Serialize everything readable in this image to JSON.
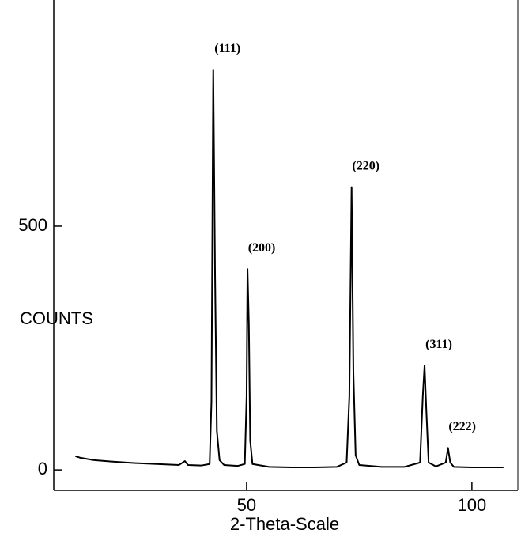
{
  "chart_data": {
    "type": "line",
    "x_label": "2-Theta-Scale",
    "y_label": "COUNTS",
    "x": [
      12,
      13,
      16,
      20,
      25,
      30,
      35,
      36.3,
      37,
      40,
      41.8,
      42.2,
      42.6,
      43.0,
      43.4,
      44,
      45,
      48,
      49.6,
      50.0,
      50.2,
      50.5,
      50.8,
      51.3,
      55,
      60,
      65,
      70,
      72.2,
      72.8,
      73.3,
      73.7,
      74.2,
      75,
      80,
      85,
      88.5,
      89.1,
      89.5,
      89.9,
      90.4,
      92,
      94.2,
      94.7,
      95.2,
      96,
      100,
      105,
      107
    ],
    "series": [
      {
        "color": "#000000",
        "values": [
          28,
          25,
          20,
          17,
          14,
          12,
          10,
          18,
          10,
          9,
          12,
          140,
          821,
          400,
          80,
          20,
          10,
          8,
          12,
          150,
          412,
          300,
          60,
          12,
          6,
          5,
          5,
          6,
          15,
          150,
          580,
          200,
          30,
          10,
          6,
          6,
          15,
          150,
          214,
          120,
          15,
          7,
          15,
          45,
          15,
          6,
          5,
          5,
          5
        ]
      }
    ],
    "peaks": [
      {
        "label": "(111)",
        "x": 42.6,
        "y": 821
      },
      {
        "label": "(200)",
        "x": 50.2,
        "y": 412
      },
      {
        "label": "(220)",
        "x": 73.3,
        "y": 580
      },
      {
        "label": "(311)",
        "x": 89.5,
        "y": 214
      },
      {
        "label": "(222)",
        "x": 94.7,
        "y": 45
      }
    ],
    "xlim": [
      7.2,
      110.2
    ],
    "xticks": [
      50,
      100
    ],
    "ylim": [
      -42,
      964
    ],
    "yticks": [
      0,
      500
    ]
  }
}
